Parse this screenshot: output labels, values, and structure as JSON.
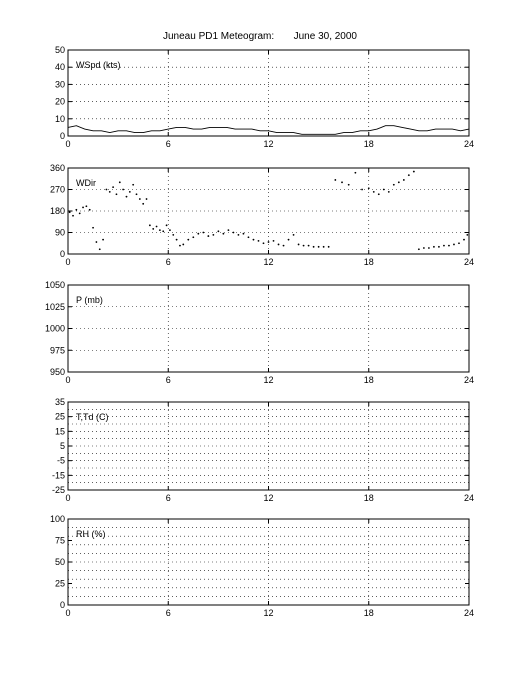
{
  "figure": {
    "title": "Juneau PD1 Meteogram:       June 30, 2000"
  },
  "chart_data": [
    {
      "type": "line",
      "label": "WSpd (kts)",
      "ylim": [
        0,
        50
      ],
      "yticks": [
        0,
        10,
        20,
        30,
        40,
        50
      ],
      "xlim": [
        0,
        24
      ],
      "xticks": [
        0,
        6,
        12,
        18,
        24
      ],
      "grid": true,
      "series": [
        {
          "x": [
            0,
            0.5,
            1,
            1.5,
            2,
            2.5,
            3,
            3.5,
            4,
            4.5,
            5,
            5.5,
            6,
            6.5,
            7,
            7.5,
            8,
            8.5,
            9,
            9.5,
            10,
            10.5,
            11,
            11.5,
            12,
            12.5,
            13,
            13.5,
            14,
            14.5,
            15,
            15.5,
            16,
            16.5,
            17,
            17.5,
            18,
            18.5,
            19,
            19.5,
            20,
            20.5,
            21,
            21.5,
            22,
            22.5,
            23,
            23.5,
            24
          ],
          "values": [
            5,
            6,
            4,
            3,
            3,
            2,
            3,
            3,
            2,
            2,
            3,
            3,
            4,
            5,
            5,
            4,
            4,
            5,
            5,
            5,
            4,
            4,
            4,
            3,
            3,
            2,
            2,
            2,
            1,
            1,
            1,
            1,
            1,
            2,
            2,
            3,
            3,
            4,
            6,
            6,
            5,
            4,
            3,
            3,
            4,
            4,
            4,
            3,
            4
          ]
        }
      ]
    },
    {
      "type": "scatter",
      "label": "WDir",
      "ylim": [
        0,
        360
      ],
      "yticks": [
        0,
        90,
        180,
        270,
        360
      ],
      "xlim": [
        0,
        24
      ],
      "xticks": [
        0,
        6,
        12,
        18,
        24
      ],
      "grid": true,
      "series": [
        {
          "x": [
            0.1,
            0.3,
            0.5,
            0.7,
            0.9,
            1.1,
            1.3,
            1.5,
            1.7,
            1.9,
            2.1,
            2.3,
            2.5,
            2.7,
            2.9,
            3.1,
            3.3,
            3.5,
            3.7,
            3.9,
            4.1,
            4.3,
            4.5,
            4.7,
            4.9,
            5.1,
            5.3,
            5.5,
            5.7,
            5.9,
            6.1,
            6.3,
            6.5,
            6.7,
            6.9,
            7.2,
            7.5,
            7.8,
            8.1,
            8.4,
            8.7,
            9.0,
            9.3,
            9.6,
            9.9,
            10.2,
            10.5,
            10.8,
            11.1,
            11.4,
            11.7,
            12.0,
            12.3,
            12.6,
            12.9,
            13.2,
            13.5,
            13.8,
            14.1,
            14.4,
            14.7,
            15.0,
            15.3,
            15.6,
            16.0,
            16.4,
            16.8,
            17.2,
            17.6,
            18.0,
            18.3,
            18.6,
            18.9,
            19.2,
            19.5,
            19.8,
            20.1,
            20.4,
            20.7,
            21.0,
            21.3,
            21.6,
            21.9,
            22.2,
            22.5,
            22.8,
            23.1,
            23.4,
            23.7,
            23.9
          ],
          "values": [
            175,
            160,
            185,
            170,
            195,
            200,
            185,
            110,
            50,
            20,
            60,
            270,
            260,
            280,
            250,
            300,
            270,
            240,
            260,
            290,
            250,
            230,
            210,
            230,
            120,
            105,
            115,
            100,
            95,
            120,
            100,
            80,
            60,
            35,
            40,
            60,
            70,
            85,
            90,
            75,
            80,
            95,
            85,
            100,
            90,
            80,
            85,
            70,
            60,
            55,
            45,
            50,
            55,
            40,
            35,
            60,
            80,
            40,
            35,
            35,
            30,
            30,
            30,
            30,
            310,
            300,
            290,
            340,
            270,
            275,
            260,
            250,
            270,
            260,
            290,
            300,
            310,
            330,
            345,
            20,
            25,
            25,
            30,
            30,
            35,
            35,
            40,
            45,
            60,
            80
          ]
        }
      ]
    },
    {
      "type": "line",
      "label": "P (mb)",
      "ylim": [
        950,
        1050
      ],
      "yticks": [
        950,
        975,
        1000,
        1025,
        1050
      ],
      "xlim": [
        0,
        24
      ],
      "xticks": [
        0,
        6,
        12,
        18,
        24
      ],
      "grid": true,
      "series": []
    },
    {
      "type": "line",
      "label": "T,Td (C)",
      "ylim": [
        -25,
        35
      ],
      "yticks": [
        -25,
        -15,
        -5,
        5,
        15,
        25,
        35
      ],
      "yticklabels": [
        -25,
        -15,
        -5,
        5,
        15,
        25,
        35
      ],
      "ygrid": [
        -25,
        -20,
        -15,
        -10,
        -5,
        0,
        5,
        10,
        15,
        20,
        25,
        30,
        35
      ],
      "xlim": [
        0,
        24
      ],
      "xticks": [
        0,
        6,
        12,
        18,
        24
      ],
      "grid": true,
      "series": []
    },
    {
      "type": "line",
      "label": "RH (%)",
      "ylim": [
        0,
        100
      ],
      "yticks": [
        0,
        25,
        50,
        75,
        100
      ],
      "ygrid": [
        0,
        10,
        20,
        30,
        40,
        50,
        60,
        70,
        80,
        90,
        100
      ],
      "xlim": [
        0,
        24
      ],
      "xticks": [
        0,
        6,
        12,
        18,
        24
      ],
      "grid": true,
      "series": []
    }
  ]
}
